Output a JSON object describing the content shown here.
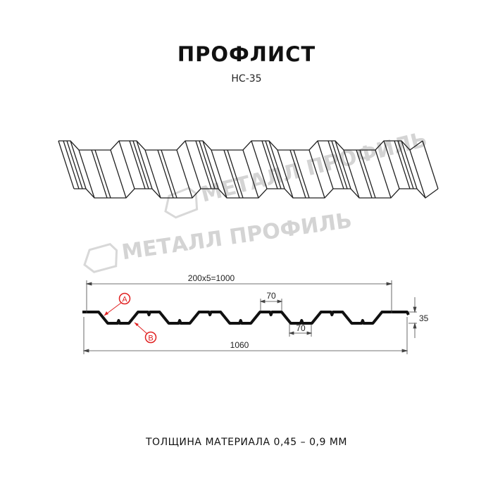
{
  "title": "ПРОФЛИСТ",
  "subtitle": "НС-35",
  "footer": "ТОЛЩИНА МАТЕРИАЛА 0,45 – 0,9 ММ",
  "watermark": "МЕТАЛЛ ПРОФИЛЬ",
  "dimensions": {
    "pitch_total": "200x5=1000",
    "top_width": "70",
    "bottom_width": "70",
    "height": "35",
    "total_width": "1060"
  },
  "callouts": {
    "a": "A",
    "b": "B"
  },
  "colors": {
    "line": "#111111",
    "accent": "#e02020",
    "watermark": "#d4d4d4"
  }
}
